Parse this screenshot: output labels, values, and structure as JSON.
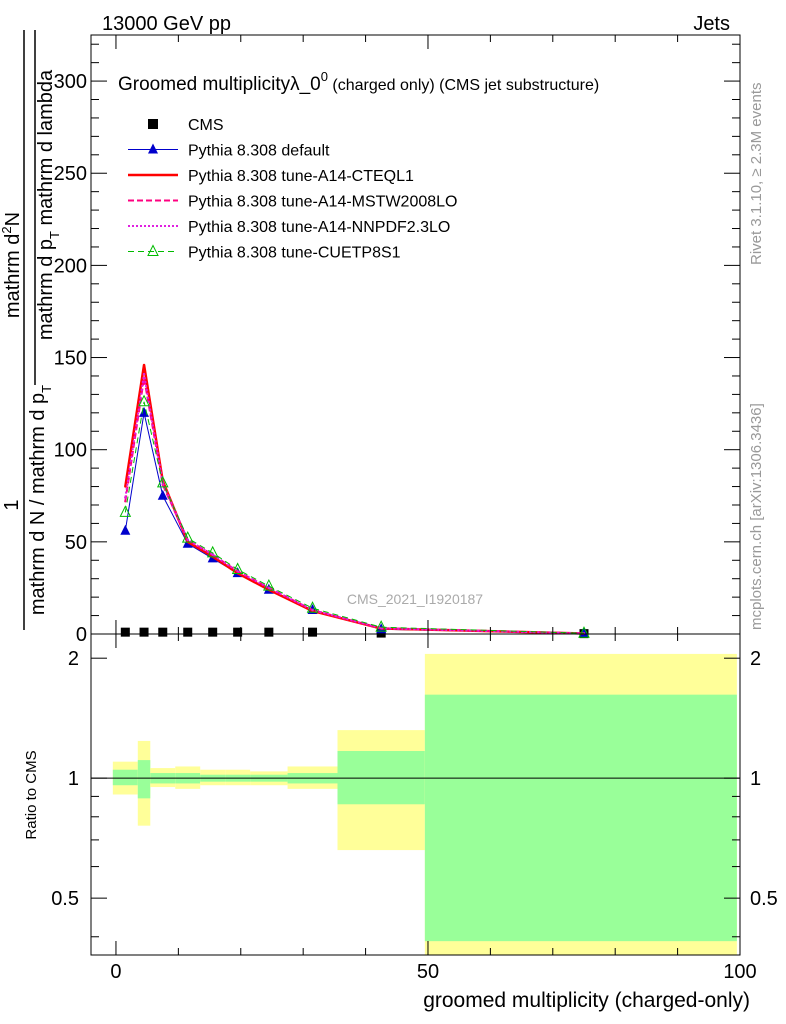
{
  "header": {
    "left": "13000 GeV pp",
    "right": "Jets"
  },
  "side_labels": {
    "rivet": "Rivet 3.1.10, ≥ 2.3M events",
    "mcplots": "mcplots.cern.ch [arXiv:1306.3436]"
  },
  "chart_data": [
    {
      "type": "line",
      "title_main": "Groomed multiplicityλ_0",
      "title_sup": "0",
      "title_rest": " (charged only) (CMS jet substructure)",
      "ylabel_numerator": "mathrm d",
      "ylabel_numerator_sup": "2",
      "ylabel_numerator_tail": "N",
      "ylabel_denominator": "mathrm d p",
      "ylabel_denominator_sub": "T",
      "ylabel_denominator_tail": " mathrm d lambda",
      "ylabel_prefactor": "1",
      "ylabel_prefactor_denominator": "mathrm d N / mathrm d p",
      "ylabel_prefactor_sub": "T",
      "xlim": [
        -4,
        100
      ],
      "ylim": [
        0,
        325
      ],
      "yticks": [
        "0",
        "50",
        "100",
        "150",
        "200",
        "250",
        "300"
      ],
      "watermark": "CMS_2021_I1920187",
      "legend_position": "top-left",
      "series": [
        {
          "name": "CMS",
          "color": "#000000",
          "marker": "square",
          "x": [
            1.5,
            4.5,
            7.5,
            11.5,
            15.5,
            19.5,
            24.5,
            31.5,
            42.5,
            75
          ],
          "y": [
            1,
            1,
            1,
            1,
            1,
            1,
            1,
            1,
            0.5,
            0.2
          ]
        },
        {
          "name": "Pythia 8.308 default",
          "color": "#0000cc",
          "marker": "triangle-filled",
          "x": [
            1.5,
            4.5,
            7.5,
            11.5,
            15.5,
            19.5,
            24.5,
            31.5,
            42.5,
            75
          ],
          "y": [
            56,
            120,
            75,
            49,
            41,
            33,
            24,
            13,
            2.6,
            0.3
          ]
        },
        {
          "name": "Pythia 8.308 tune-A14-CTEQL1",
          "color": "#ff0000",
          "marker": "none",
          "x": [
            1.5,
            4.5,
            7.5,
            11.5,
            15.5,
            19.5,
            24.5,
            31.5,
            42.5,
            75
          ],
          "y": [
            80,
            146,
            83,
            50,
            42,
            33,
            24,
            12.5,
            3.0,
            0.3
          ]
        },
        {
          "name": "Pythia 8.308 tune-A14-MSTW2008LO",
          "color": "#ff0080",
          "marker": "none",
          "x": [
            1.5,
            4.5,
            7.5,
            11.5,
            15.5,
            19.5,
            24.5,
            31.5,
            42.5,
            75
          ],
          "y": [
            72,
            139,
            81,
            51,
            43,
            34,
            25,
            13,
            3.1,
            0.3
          ]
        },
        {
          "name": "Pythia 8.308 tune-A14-NNPDF2.3LO",
          "color": "#e020e0",
          "marker": "none",
          "x": [
            1.5,
            4.5,
            7.5,
            11.5,
            15.5,
            19.5,
            24.5,
            31.5,
            42.5,
            75
          ],
          "y": [
            74,
            141,
            82,
            51,
            43,
            34,
            25,
            13,
            3.1,
            0.3
          ]
        },
        {
          "name": "Pythia 8.308 tune-CUETP8S1",
          "color": "#00bb00",
          "marker": "triangle-open",
          "x": [
            1.5,
            4.5,
            7.5,
            11.5,
            15.5,
            19.5,
            24.5,
            31.5,
            42.5,
            75
          ],
          "y": [
            66,
            126,
            82,
            52,
            44,
            35,
            26,
            14,
            3.7,
            0.4
          ]
        }
      ]
    },
    {
      "type": "area",
      "ylabel": "Ratio to CMS",
      "xlabel": "groomed multiplicity (charged-only)",
      "xlim": [
        -4,
        100
      ],
      "ylim": [
        0.36,
        2.3
      ],
      "xticks": [
        "0",
        "50",
        "100"
      ],
      "yticks": [
        "0.5",
        "1",
        "2"
      ],
      "reference_line": 1,
      "bands": [
        {
          "x0": -0.5,
          "x1": 3.5,
          "stat_lo": 0.96,
          "stat_hi": 1.05,
          "tot_lo": 0.91,
          "tot_hi": 1.1
        },
        {
          "x0": 3.5,
          "x1": 5.5,
          "stat_lo": 0.89,
          "stat_hi": 1.11,
          "tot_lo": 0.76,
          "tot_hi": 1.24
        },
        {
          "x0": 5.5,
          "x1": 9.5,
          "stat_lo": 0.97,
          "stat_hi": 1.03,
          "tot_lo": 0.95,
          "tot_hi": 1.06
        },
        {
          "x0": 9.5,
          "x1": 13.5,
          "stat_lo": 0.97,
          "stat_hi": 1.03,
          "tot_lo": 0.94,
          "tot_hi": 1.07
        },
        {
          "x0": 13.5,
          "x1": 17.5,
          "stat_lo": 0.98,
          "stat_hi": 1.02,
          "tot_lo": 0.96,
          "tot_hi": 1.05
        },
        {
          "x0": 17.5,
          "x1": 21.5,
          "stat_lo": 0.98,
          "stat_hi": 1.02,
          "tot_lo": 0.96,
          "tot_hi": 1.05
        },
        {
          "x0": 21.5,
          "x1": 27.5,
          "stat_lo": 0.98,
          "stat_hi": 1.02,
          "tot_lo": 0.96,
          "tot_hi": 1.04
        },
        {
          "x0": 27.5,
          "x1": 35.5,
          "stat_lo": 0.97,
          "stat_hi": 1.03,
          "tot_lo": 0.94,
          "tot_hi": 1.07
        },
        {
          "x0": 35.5,
          "x1": 49.5,
          "stat_lo": 0.86,
          "stat_hi": 1.17,
          "tot_lo": 0.66,
          "tot_hi": 1.32
        },
        {
          "x0": 49.5,
          "x1": 99.5,
          "stat_lo": 0.39,
          "stat_hi": 1.62,
          "tot_lo": 0.36,
          "tot_hi": 2.05
        }
      ]
    }
  ]
}
